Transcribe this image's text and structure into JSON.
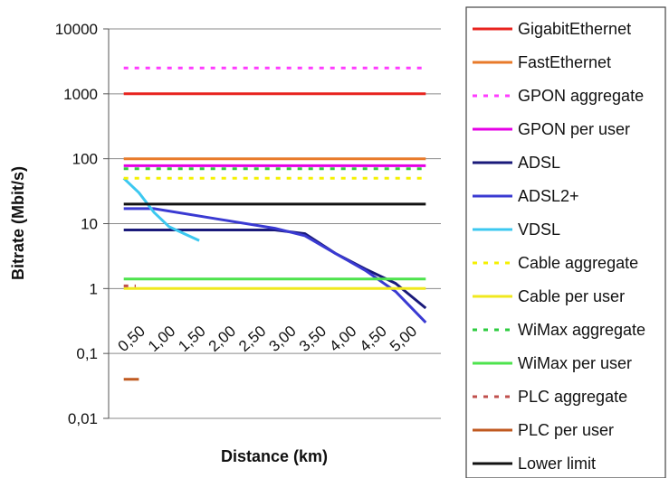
{
  "chart_data": {
    "type": "line",
    "title": "",
    "xlabel": "Distance (km)",
    "ylabel": "Bitrate (Mbit/s)",
    "yscale": "log",
    "ylim": [
      0.01,
      10000
    ],
    "ytick_labels": [
      "10000",
      "1000",
      "100",
      "10",
      "1",
      "0,1",
      "0,01"
    ],
    "ytick_values": [
      10000,
      1000,
      100,
      10,
      1,
      0.1,
      0.01
    ],
    "xlim": [
      0.25,
      5.75
    ],
    "xtick_labels": [
      "0,50",
      "1,00",
      "1,50",
      "2,00",
      "2,50",
      "3,00",
      "3,50",
      "4,00",
      "4,50",
      "5,00"
    ],
    "xtick_values": [
      0.5,
      1.0,
      1.5,
      2.0,
      2.5,
      3.0,
      3.5,
      4.0,
      4.5,
      5.0
    ],
    "grid": "horizontal",
    "legend_position": "right",
    "series": [
      {
        "name": "GigabitEthernet",
        "color": "#e8231e",
        "dash": "solid",
        "x": [
          0.5,
          5.5
        ],
        "y": [
          1000,
          1000
        ]
      },
      {
        "name": "FastEthernet",
        "color": "#e87a2a",
        "dash": "solid",
        "x": [
          0.5,
          5.5
        ],
        "y": [
          100,
          100
        ]
      },
      {
        "name": "GPON aggregate",
        "color": "#ff3cff",
        "dash": "dotted",
        "x": [
          0.5,
          5.5
        ],
        "y": [
          2500,
          2500
        ]
      },
      {
        "name": "GPON per user",
        "color": "#e600e6",
        "dash": "solid",
        "x": [
          0.5,
          5.5
        ],
        "y": [
          78,
          78
        ]
      },
      {
        "name": "ADSL",
        "color": "#1a1a7a",
        "dash": "solid",
        "x": [
          0.5,
          3.0,
          3.5,
          4.0,
          4.5,
          5.0,
          5.5
        ],
        "y": [
          8,
          8,
          7,
          3.5,
          2,
          1.2,
          0.5
        ]
      },
      {
        "name": "ADSL2+",
        "color": "#3a3ad2",
        "dash": "solid",
        "x": [
          0.5,
          1.0,
          2.0,
          3.0,
          3.5,
          4.0,
          4.5,
          5.0,
          5.5
        ],
        "y": [
          17,
          17,
          12,
          8.5,
          6.5,
          3.5,
          1.9,
          0.9,
          0.3
        ]
      },
      {
        "name": "VDSL",
        "color": "#3cc8f0",
        "dash": "solid",
        "x": [
          0.5,
          0.75,
          1.0,
          1.25,
          1.5,
          1.75
        ],
        "y": [
          50,
          30,
          15,
          9,
          7,
          5.5
        ]
      },
      {
        "name": "Cable aggregate",
        "color": "#f5f000",
        "dash": "dotted",
        "x": [
          0.5,
          5.5
        ],
        "y": [
          50,
          50
        ]
      },
      {
        "name": "Cable per user",
        "color": "#f0e81e",
        "dash": "solid",
        "x": [
          0.5,
          5.5
        ],
        "y": [
          1,
          1
        ]
      },
      {
        "name": "WiMax aggregate",
        "color": "#2ecc40",
        "dash": "dotted",
        "x": [
          0.5,
          5.5
        ],
        "y": [
          70,
          70
        ]
      },
      {
        "name": "WiMax per user",
        "color": "#4de34d",
        "dash": "solid",
        "x": [
          0.5,
          5.5
        ],
        "y": [
          1.4,
          1.4
        ]
      },
      {
        "name": "PLC aggregate",
        "color": "#c0504d",
        "dash": "dotted",
        "x": [
          0.5,
          0.7
        ],
        "y": [
          1.1,
          1.1
        ]
      },
      {
        "name": "PLC per user",
        "color": "#c05a20",
        "dash": "solid",
        "x": [
          0.5,
          0.75
        ],
        "y": [
          0.04,
          0.04
        ]
      },
      {
        "name": "Lower limit",
        "color": "#111111",
        "dash": "solid",
        "x": [
          0.5,
          5.5
        ],
        "y": [
          20,
          20
        ]
      }
    ]
  }
}
